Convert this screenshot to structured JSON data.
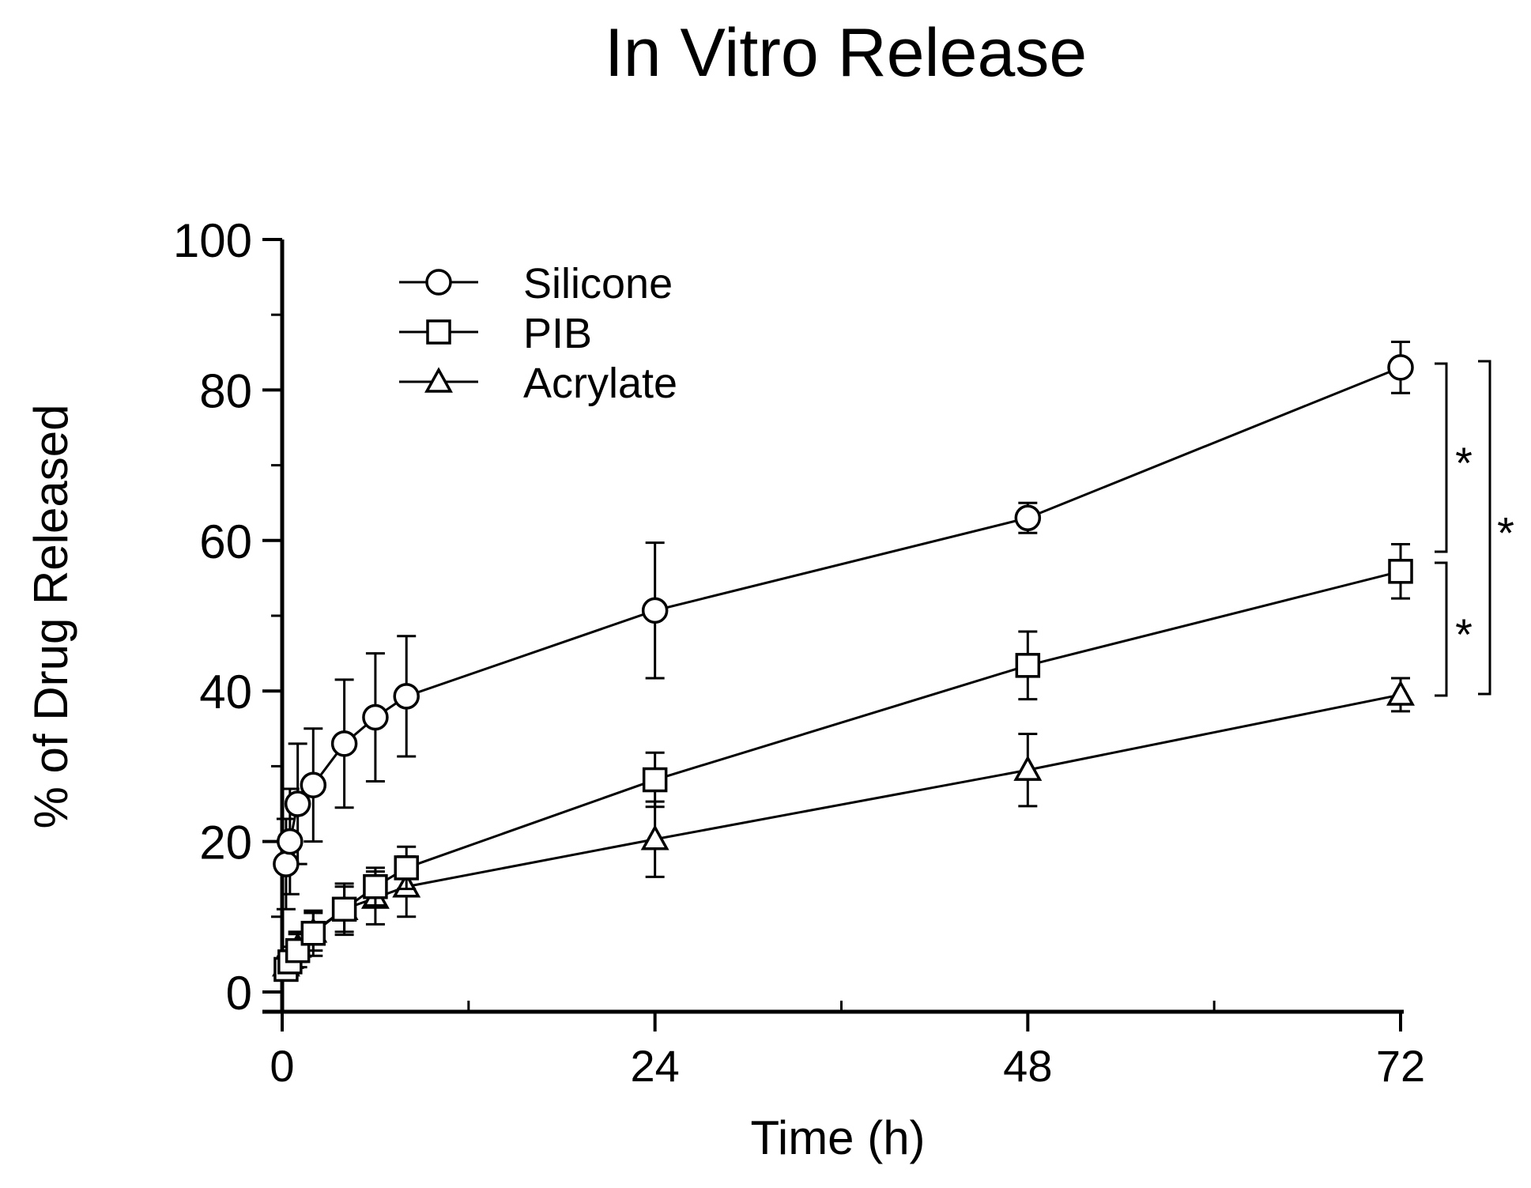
{
  "chart_data": {
    "type": "line",
    "title": "In Vitro Release",
    "xlabel": "Time (h)",
    "ylabel": "% of Drug Released",
    "xlim": [
      0,
      72
    ],
    "ylim": [
      0,
      100
    ],
    "x_ticks": [
      0,
      24,
      48,
      72
    ],
    "x_minor_ticks": [
      12,
      36,
      60
    ],
    "y_ticks": [
      0,
      20,
      40,
      60,
      80,
      100
    ],
    "y_minor_ticks": [
      10,
      30,
      50,
      70,
      90
    ],
    "grid": false,
    "legend_position": "top-left",
    "series": [
      {
        "name": "Silicone",
        "marker": "circle",
        "x": [
          0.25,
          0.5,
          1,
          2,
          4,
          6,
          8,
          24,
          48,
          72
        ],
        "y": [
          17,
          20,
          25,
          27.5,
          33,
          36.5,
          39.3,
          50.7,
          63,
          83
        ],
        "err": [
          6,
          7,
          8,
          7.5,
          8.5,
          8.5,
          8,
          9,
          2,
          3.4
        ]
      },
      {
        "name": "PIB",
        "marker": "square",
        "x": [
          0.25,
          0.5,
          1,
          2,
          4,
          6,
          8,
          24,
          48,
          72
        ],
        "y": [
          3,
          4,
          5.5,
          7.8,
          11,
          14,
          16.5,
          28.2,
          43.4,
          55.9
        ],
        "err": [
          1.2,
          1.5,
          2.2,
          3,
          3.4,
          2.5,
          2.8,
          3.6,
          4.5,
          3.6
        ]
      },
      {
        "name": "Acrylate",
        "marker": "triangle",
        "x": [
          0.25,
          0.5,
          1,
          2,
          4,
          6,
          8,
          24,
          48,
          72
        ],
        "y": [
          3.5,
          4.5,
          6,
          8,
          11,
          12.5,
          14,
          20.3,
          29.5,
          39.5
        ],
        "err": [
          1.2,
          1.5,
          2,
          2.5,
          3,
          3.5,
          4,
          5,
          4.8,
          2.2
        ]
      }
    ],
    "annotations": [
      {
        "text": "*",
        "between": [
          "Silicone",
          "PIB"
        ],
        "at_x": 72
      },
      {
        "text": "*",
        "between": [
          "PIB",
          "Acrylate"
        ],
        "at_x": 72
      },
      {
        "text": "*",
        "between": [
          "Silicone",
          "Acrylate"
        ],
        "at_x": 72
      }
    ]
  }
}
